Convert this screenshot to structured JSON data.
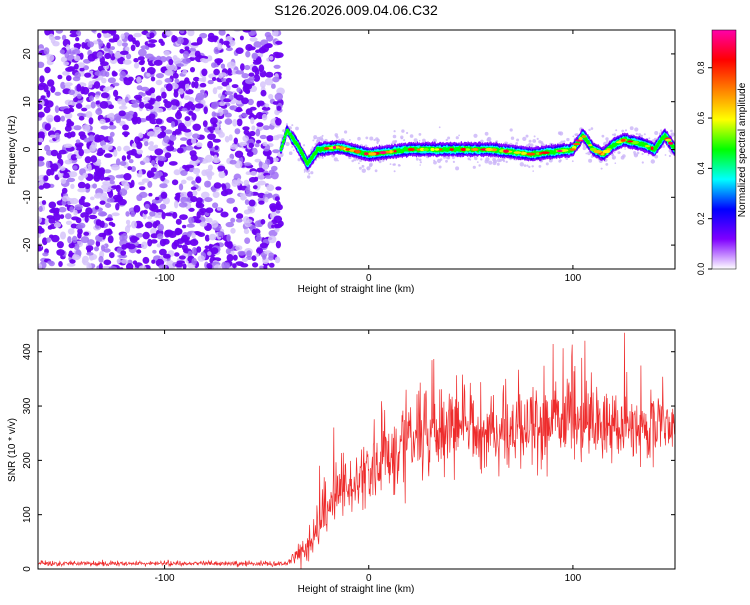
{
  "title": "S126.2026.009.04.06.C32",
  "chart_data": [
    {
      "type": "heatmap",
      "name": "spectrogram",
      "xlabel": "Height of straight line (km)",
      "ylabel": "Frequency (Hz)",
      "xlim": [
        -162,
        150
      ],
      "ylim": [
        -25,
        25
      ],
      "x_ticks": [
        -100,
        0,
        100
      ],
      "x_tick_labels": [
        "-100",
        "0",
        "100"
      ],
      "y_ticks": [
        -20,
        -10,
        0,
        10,
        20
      ],
      "y_tick_labels": [
        "-20",
        "-10",
        "0",
        "10",
        "20"
      ],
      "grid": false,
      "noise_region_x": [
        -162,
        -43
      ],
      "signal_start_x": -43,
      "ridge": [
        {
          "x": -43,
          "y": 0
        },
        {
          "x": -40,
          "y": 4
        },
        {
          "x": -35,
          "y": 1
        },
        {
          "x": -30,
          "y": -3
        },
        {
          "x": -25,
          "y": 0
        },
        {
          "x": -15,
          "y": 0.5
        },
        {
          "x": 0,
          "y": -1
        },
        {
          "x": 20,
          "y": 0
        },
        {
          "x": 40,
          "y": 0
        },
        {
          "x": 60,
          "y": 0
        },
        {
          "x": 80,
          "y": -1
        },
        {
          "x": 100,
          "y": 0
        },
        {
          "x": 105,
          "y": 3
        },
        {
          "x": 110,
          "y": 0
        },
        {
          "x": 115,
          "y": -1
        },
        {
          "x": 120,
          "y": 1
        },
        {
          "x": 125,
          "y": 2
        },
        {
          "x": 135,
          "y": 1
        },
        {
          "x": 140,
          "y": 0
        },
        {
          "x": 145,
          "y": 3
        },
        {
          "x": 150,
          "y": 0
        }
      ],
      "colorbar": {
        "label": "Normalized spectral amplitude",
        "range": [
          0,
          0.95
        ],
        "ticks": [
          0,
          0.2,
          0.4,
          0.6,
          0.8
        ],
        "tick_labels": [
          "0.0",
          "0.2",
          "0.4",
          "0.6",
          "0.8"
        ],
        "colors": [
          "#ffffff",
          "#7f00ff",
          "#0000ff",
          "#00ffff",
          "#00ff00",
          "#ffff00",
          "#ff8000",
          "#ff0000",
          "#ff00aa"
        ]
      }
    },
    {
      "type": "line",
      "name": "snr",
      "xlabel": "Height of straight line (km)",
      "ylabel": "SNR (10 * v/v)",
      "xlim": [
        -162,
        150
      ],
      "ylim": [
        0,
        440
      ],
      "x_ticks": [
        -100,
        0,
        100
      ],
      "x_tick_labels": [
        "-100",
        "0",
        "100"
      ],
      "y_ticks": [
        0,
        100,
        200,
        300,
        400
      ],
      "y_tick_labels": [
        "0",
        "100",
        "200",
        "300",
        "400"
      ],
      "grid": false,
      "color": "#ee2c2c",
      "envelope": [
        {
          "x": -162,
          "mean": 10,
          "spread": 8
        },
        {
          "x": -40,
          "mean": 10,
          "spread": 8
        },
        {
          "x": -30,
          "mean": 40,
          "spread": 50
        },
        {
          "x": -20,
          "mean": 120,
          "spread": 90
        },
        {
          "x": 0,
          "mean": 180,
          "spread": 120
        },
        {
          "x": 20,
          "mean": 240,
          "spread": 140
        },
        {
          "x": 40,
          "mean": 260,
          "spread": 130
        },
        {
          "x": 60,
          "mean": 255,
          "spread": 120
        },
        {
          "x": 80,
          "mean": 260,
          "spread": 130
        },
        {
          "x": 100,
          "mean": 270,
          "spread": 120
        },
        {
          "x": 120,
          "mean": 265,
          "spread": 110
        },
        {
          "x": 150,
          "mean": 265,
          "spread": 90
        }
      ]
    }
  ]
}
